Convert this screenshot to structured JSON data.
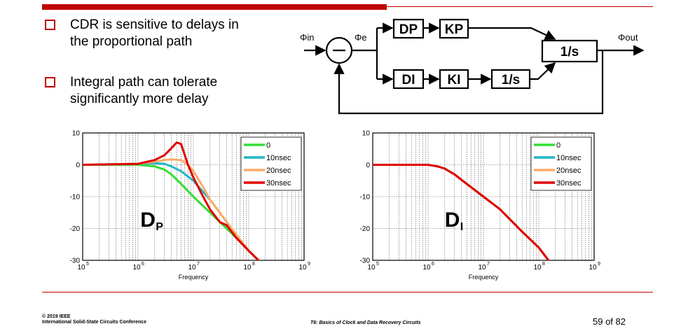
{
  "bullets": [
    {
      "line1": "CDR is sensitive to delays in",
      "line2": "the proportional path"
    },
    {
      "line1": "Integral path can tolerate",
      "line2": "significantly more delay"
    }
  ],
  "diagram": {
    "input_label": "Φin",
    "error_label": "Φe",
    "output_label": "Φout",
    "blocks": {
      "dp": "DP",
      "kp": "KP",
      "di": "DI",
      "ki": "KI",
      "int1": "1/s",
      "int2": "1/s"
    }
  },
  "colors": {
    "accent": "#c00000",
    "s0": "#33dd33",
    "s10": "#22b5c8",
    "s20": "#ffaa66",
    "s30": "#e00000"
  },
  "chart_data": [
    {
      "type": "line",
      "title": "Dp",
      "xlabel": "Frequency",
      "ylabel": "",
      "xscale": "log",
      "xlim": [
        100000,
        1000000000
      ],
      "ylim": [
        -30,
        10
      ],
      "xticks": [
        {
          "base": "10",
          "exp": "5"
        },
        {
          "base": "10",
          "exp": "6"
        },
        {
          "base": "10",
          "exp": "7"
        },
        {
          "base": "10",
          "exp": "8"
        },
        {
          "base": "10",
          "exp": "9"
        }
      ],
      "yticks": [
        "10",
        "0",
        "-10",
        "-20",
        "-30"
      ],
      "grid": true,
      "legend": "top-right",
      "series": [
        {
          "name": "0",
          "color": "#33dd33",
          "x": [
            100000,
            1000000,
            2000000,
            3000000,
            4000000,
            6000000,
            10000000,
            20000000,
            40000000,
            60000000,
            100000000,
            150000000
          ],
          "y": [
            0,
            0,
            -0.5,
            -1.5,
            -3,
            -6,
            -10,
            -15,
            -20,
            -23,
            -27,
            -30
          ]
        },
        {
          "name": "10nsec",
          "color": "#22b5c8",
          "x": [
            100000,
            1000000,
            2000000,
            3000000,
            4000000,
            6000000,
            10000000,
            20000000,
            30000000,
            40000000,
            60000000,
            100000000,
            150000000
          ],
          "y": [
            0,
            0.3,
            0.5,
            0.3,
            -0.5,
            -2,
            -5,
            -11,
            -15,
            -18,
            -22,
            -27,
            -30
          ]
        },
        {
          "name": "20nsec",
          "color": "#ffaa66",
          "x": [
            100000,
            1000000,
            2000000,
            3000000,
            4000000,
            6000000,
            8000000,
            10000000,
            15000000,
            20000000,
            30000000,
            40000000,
            60000000,
            100000000,
            150000000
          ],
          "y": [
            0,
            0.3,
            1,
            1.5,
            1.7,
            1.5,
            0,
            -2,
            -7,
            -11,
            -15,
            -18,
            -22,
            -27,
            -30
          ]
        },
        {
          "name": "30nsec",
          "color": "#e00000",
          "x": [
            100000,
            1000000,
            2000000,
            3000000,
            4000000,
            5000000,
            6000000,
            7000000,
            8000000,
            10000000,
            15000000,
            20000000,
            30000000,
            40000000,
            60000000,
            100000000,
            150000000
          ],
          "y": [
            0,
            0.3,
            1.5,
            3,
            5.2,
            7,
            6.5,
            3,
            0,
            -4,
            -10,
            -14,
            -18,
            -19,
            -23,
            -27,
            -30
          ]
        }
      ]
    },
    {
      "type": "line",
      "title": "DI",
      "xlabel": "Frequency",
      "ylabel": "",
      "xscale": "log",
      "xlim": [
        100000,
        1000000000
      ],
      "ylim": [
        -30,
        10
      ],
      "xticks": [
        {
          "base": "10",
          "exp": "5"
        },
        {
          "base": "10",
          "exp": "6"
        },
        {
          "base": "10",
          "exp": "7"
        },
        {
          "base": "10",
          "exp": "8"
        },
        {
          "base": "10",
          "exp": "9"
        }
      ],
      "yticks": [
        "10",
        "0",
        "-10",
        "-20",
        "-30"
      ],
      "grid": true,
      "legend": "top-right",
      "series": [
        {
          "name": "0",
          "color": "#33dd33",
          "x": [
            100000,
            1000000,
            1500000,
            2000000,
            3000000,
            5000000,
            10000000,
            20000000,
            50000000,
            100000000,
            150000000
          ],
          "y": [
            0,
            0,
            -0.5,
            -1.2,
            -3,
            -6,
            -10,
            -14,
            -21,
            -26,
            -30
          ]
        },
        {
          "name": "10nsec",
          "color": "#22b5c8",
          "x": [
            100000,
            1000000,
            1500000,
            2000000,
            3000000,
            5000000,
            10000000,
            20000000,
            50000000,
            100000000,
            150000000
          ],
          "y": [
            0,
            0,
            -0.5,
            -1.2,
            -3,
            -6,
            -10,
            -14,
            -21,
            -26,
            -30
          ]
        },
        {
          "name": "20nsec",
          "color": "#ffaa66",
          "x": [
            100000,
            1000000,
            1500000,
            2000000,
            3000000,
            5000000,
            10000000,
            20000000,
            50000000,
            100000000,
            150000000
          ],
          "y": [
            0,
            0,
            -0.5,
            -1.2,
            -3,
            -6,
            -10,
            -14,
            -21,
            -26,
            -30
          ]
        },
        {
          "name": "30nsec",
          "color": "#e00000",
          "x": [
            100000,
            1000000,
            1500000,
            2000000,
            3000000,
            5000000,
            10000000,
            20000000,
            50000000,
            100000000,
            150000000
          ],
          "y": [
            0,
            0,
            -0.5,
            -1.2,
            -3,
            -6,
            -10,
            -14,
            -21,
            -26,
            -30
          ]
        }
      ]
    }
  ],
  "footer": {
    "copyright_line1": "© 2019 IEEE",
    "copyright_line2": "International Solid-State Circuits Conference",
    "course": "T6: Basics of Clock and Data Recovery Circuits",
    "page": "59 of 82"
  }
}
